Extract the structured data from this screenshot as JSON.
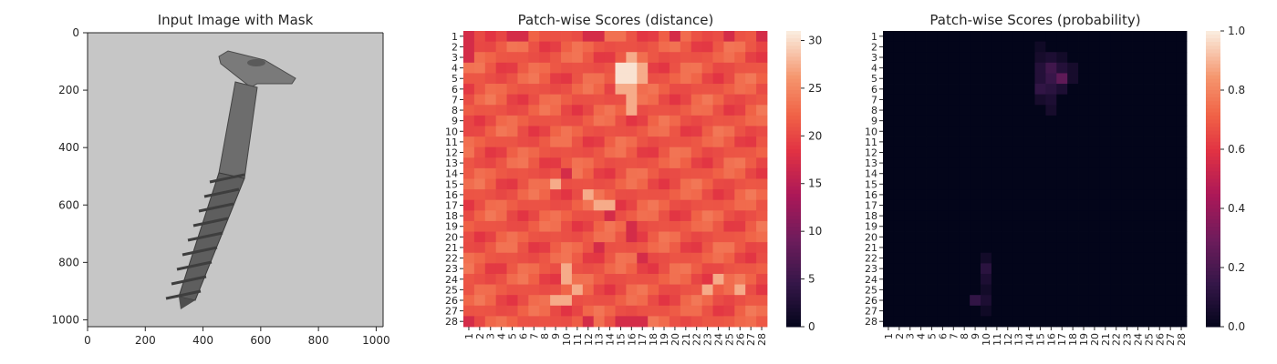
{
  "chart_data": [
    {
      "type": "image",
      "title": "Input Image with Mask",
      "xlim": [
        0,
        1024
      ],
      "ylim": [
        1024,
        0
      ],
      "xticks": [
        "0",
        "200",
        "400",
        "600",
        "800",
        "1000"
      ],
      "yticks": [
        "0",
        "200",
        "400",
        "600",
        "800",
        "1000"
      ],
      "image_subject": "grayscale photo of a wood screw on a light gray background"
    },
    {
      "type": "heatmap",
      "title": "Patch-wise Scores (distance)",
      "x_labels": [
        "1",
        "2",
        "3",
        "4",
        "5",
        "6",
        "7",
        "8",
        "9",
        "10",
        "11",
        "12",
        "13",
        "14",
        "15",
        "16",
        "17",
        "18",
        "19",
        "20",
        "21",
        "22",
        "23",
        "24",
        "25",
        "26",
        "27",
        "28"
      ],
      "y_labels": [
        "1",
        "2",
        "3",
        "4",
        "5",
        "6",
        "7",
        "8",
        "9",
        "10",
        "11",
        "12",
        "13",
        "14",
        "15",
        "16",
        "17",
        "18",
        "19",
        "20",
        "21",
        "22",
        "23",
        "24",
        "25",
        "26",
        "27",
        "28"
      ],
      "colorbar": {
        "min": 0,
        "max": 31,
        "ticks": [
          "0",
          "5",
          "10",
          "15",
          "20",
          "25",
          "30"
        ]
      },
      "base_value": 21.5,
      "low_value_cells": [
        [
          1,
          1
        ],
        [
          1,
          5
        ],
        [
          1,
          6
        ],
        [
          1,
          12
        ],
        [
          1,
          13
        ],
        [
          1,
          20
        ],
        [
          1,
          25
        ],
        [
          1,
          28
        ],
        [
          2,
          1
        ],
        [
          3,
          1
        ],
        [
          14,
          10
        ],
        [
          18,
          14
        ],
        [
          19,
          16
        ],
        [
          20,
          16
        ],
        [
          21,
          13
        ],
        [
          22,
          17
        ],
        [
          28,
          1
        ],
        [
          28,
          12
        ],
        [
          28,
          15
        ],
        [
          28,
          16
        ],
        [
          28,
          17
        ]
      ],
      "high_value_cells": [
        [
          3,
          16
        ],
        [
          4,
          15
        ],
        [
          4,
          16
        ],
        [
          4,
          17
        ],
        [
          5,
          15
        ],
        [
          5,
          16
        ],
        [
          5,
          17
        ],
        [
          6,
          15
        ],
        [
          6,
          16
        ],
        [
          7,
          16
        ],
        [
          8,
          16
        ],
        [
          15,
          9
        ],
        [
          16,
          12
        ],
        [
          17,
          13
        ],
        [
          17,
          14
        ],
        [
          23,
          10
        ],
        [
          24,
          10
        ],
        [
          25,
          11
        ],
        [
          26,
          9
        ],
        [
          26,
          10
        ],
        [
          24,
          24
        ],
        [
          25,
          23
        ],
        [
          25,
          26
        ]
      ]
    },
    {
      "type": "heatmap",
      "title": "Patch-wise Scores (probability)",
      "x_labels": [
        "1",
        "2",
        "3",
        "4",
        "5",
        "6",
        "7",
        "8",
        "9",
        "10",
        "11",
        "12",
        "13",
        "14",
        "15",
        "16",
        "17",
        "18",
        "19",
        "20",
        "21",
        "22",
        "23",
        "24",
        "25",
        "26",
        "27",
        "28"
      ],
      "y_labels": [
        "1",
        "2",
        "3",
        "4",
        "5",
        "6",
        "7",
        "8",
        "9",
        "10",
        "11",
        "12",
        "13",
        "14",
        "15",
        "16",
        "17",
        "18",
        "19",
        "20",
        "21",
        "22",
        "23",
        "24",
        "25",
        "26",
        "27",
        "28"
      ],
      "colorbar": {
        "min": 0,
        "max": 1,
        "ticks": [
          "0.0",
          "0.2",
          "0.4",
          "0.6",
          "0.8",
          "1.0"
        ]
      },
      "base_value": 0.0,
      "nonzero_cells": [
        [
          2,
          15,
          0.04
        ],
        [
          3,
          15,
          0.06
        ],
        [
          3,
          16,
          0.08
        ],
        [
          3,
          17,
          0.05
        ],
        [
          4,
          15,
          0.1
        ],
        [
          4,
          16,
          0.18
        ],
        [
          4,
          17,
          0.1
        ],
        [
          4,
          18,
          0.06
        ],
        [
          5,
          15,
          0.1
        ],
        [
          5,
          16,
          0.16
        ],
        [
          5,
          17,
          0.26
        ],
        [
          5,
          18,
          0.06
        ],
        [
          6,
          15,
          0.14
        ],
        [
          6,
          16,
          0.12
        ],
        [
          6,
          17,
          0.08
        ],
        [
          7,
          15,
          0.06
        ],
        [
          7,
          16,
          0.08
        ],
        [
          8,
          16,
          0.06
        ],
        [
          22,
          10,
          0.05
        ],
        [
          23,
          10,
          0.12
        ],
        [
          24,
          10,
          0.08
        ],
        [
          25,
          10,
          0.05
        ],
        [
          26,
          9,
          0.14
        ],
        [
          26,
          10,
          0.08
        ],
        [
          27,
          10,
          0.04
        ]
      ]
    }
  ]
}
